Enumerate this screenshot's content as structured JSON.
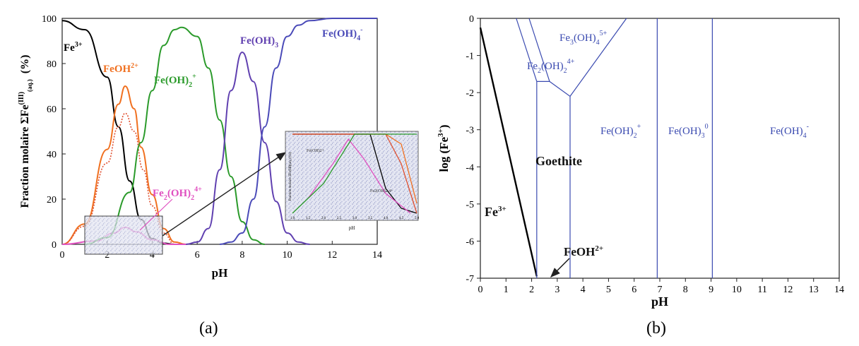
{
  "panel_labels": {
    "a": "(a)",
    "b": "(b)"
  },
  "chart_data": [
    {
      "type": "line",
      "xlabel": "pH",
      "ylabel_main": "Fraction molaire ΣFe",
      "ylabel_sup": "(III)",
      "ylabel_sub": "(aq.)",
      "ylabel_unit": "(%)",
      "xlim": [
        0,
        14
      ],
      "ylim": [
        0,
        100
      ],
      "xticks": [
        "0",
        "2",
        "4",
        "6",
        "8",
        "10",
        "12",
        "14"
      ],
      "yticks": [
        "0",
        "20",
        "40",
        "60",
        "80",
        "100"
      ],
      "series": [
        {
          "name": "Fe3+",
          "color": "#000000",
          "points": [
            [
              0,
              99
            ],
            [
              1,
              95
            ],
            [
              2,
              74
            ],
            [
              2.5,
              52
            ],
            [
              3,
              28
            ],
            [
              3.5,
              11
            ],
            [
              4,
              2.5
            ],
            [
              4.5,
              0.5
            ],
            [
              5,
              0
            ]
          ]
        },
        {
          "name": "FeOH2+",
          "color": "#f07020",
          "points": [
            [
              0,
              0
            ],
            [
              1,
              9
            ],
            [
              2,
              42
            ],
            [
              2.5,
              62
            ],
            [
              2.8,
              70
            ],
            [
              3.2,
              60
            ],
            [
              3.5,
              43
            ],
            [
              4,
              22
            ],
            [
              4.5,
              7
            ],
            [
              5,
              1
            ],
            [
              5.5,
              0
            ]
          ]
        },
        {
          "name": "FeOH2+ (dotted)",
          "color": "#e05030",
          "dashed": true,
          "points": [
            [
              0,
              0
            ],
            [
              1,
              8
            ],
            [
              2,
              36
            ],
            [
              2.5,
              52
            ],
            [
              2.8,
              58
            ],
            [
              3.2,
              50
            ],
            [
              3.6,
              33
            ],
            [
              4,
              17
            ],
            [
              4.5,
              5
            ],
            [
              5,
              0
            ]
          ]
        },
        {
          "name": "Fe2(OH)2 4+",
          "color": "#e050c0",
          "points": [
            [
              0,
              0
            ],
            [
              1.5,
              1.5
            ],
            [
              2.3,
              5
            ],
            [
              2.8,
              7.5
            ],
            [
              3.3,
              5.5
            ],
            [
              4,
              2
            ],
            [
              4.8,
              0
            ],
            [
              5.5,
              0
            ]
          ]
        },
        {
          "name": "Fe(OH)2+",
          "color": "#2a9a2a",
          "points": [
            [
              1,
              0
            ],
            [
              2,
              3
            ],
            [
              3,
              23
            ],
            [
              3.5,
              45
            ],
            [
              4,
              68
            ],
            [
              4.5,
              88
            ],
            [
              5,
              95
            ],
            [
              5.3,
              96
            ],
            [
              6,
              92
            ],
            [
              6.5,
              78
            ],
            [
              7,
              55
            ],
            [
              7.5,
              30
            ],
            [
              8,
              10
            ],
            [
              8.5,
              2
            ],
            [
              9,
              0
            ]
          ]
        },
        {
          "name": "Fe(OH)3",
          "color": "#6040b0",
          "points": [
            [
              5.5,
              0
            ],
            [
              6,
              1
            ],
            [
              6.5,
              7
            ],
            [
              7,
              33
            ],
            [
              7.5,
              68
            ],
            [
              8,
              85
            ],
            [
              8.5,
              72
            ],
            [
              9,
              45
            ],
            [
              9.5,
              19
            ],
            [
              10,
              5
            ],
            [
              10.5,
              1
            ],
            [
              11,
              0
            ]
          ]
        },
        {
          "name": "Fe(OH)4-",
          "color": "#4a4ab8",
          "points": [
            [
              7,
              0
            ],
            [
              7.5,
              1
            ],
            [
              8,
              5
            ],
            [
              8.5,
              20
            ],
            [
              9,
              52
            ],
            [
              9.5,
              78
            ],
            [
              10,
              92
            ],
            [
              10.5,
              97
            ],
            [
              11,
              99
            ],
            [
              12,
              100
            ],
            [
              14,
              100
            ]
          ]
        }
      ],
      "annotations": [
        {
          "text": "Fe",
          "sup": "3+",
          "color": "#000000"
        },
        {
          "text": "FeOH",
          "sup": "2+",
          "color": "#f07020"
        },
        {
          "text": "Fe(OH)",
          "sub": "2",
          "sup": "+",
          "color": "#2a9a2a"
        },
        {
          "text": "Fe(OH)",
          "sub": "3",
          "color": "#6040b0"
        },
        {
          "text": "Fe(OH)",
          "sub": "4",
          "sup": "-",
          "color": "#4a4ab8"
        },
        {
          "text": "Fe",
          "sub": "2",
          "mid": "(OH)",
          "sub2": "2",
          "sup": "4+",
          "color": "#e050c0"
        }
      ],
      "inset": {
        "xticks": [
          "1.0",
          "1.5",
          "2.0",
          "2.5",
          "3.0",
          "3.5",
          "4.0",
          "4.5",
          "5.0"
        ],
        "xlabel": "pH",
        "ylabel": "Fraction molaire ΣFe(III)(aq.) (%)",
        "labels": [
          "Fe2(OH)2 4+",
          "Fe(OH)2+"
        ]
      }
    },
    {
      "type": "line",
      "xlabel": "pH",
      "ylabel": "log (Fe",
      "ylabel_sup": "3+",
      "ylabel_end": ")",
      "xlim": [
        0,
        14
      ],
      "ylim": [
        -7,
        0
      ],
      "xticks": [
        "0",
        "1",
        "2",
        "3",
        "4",
        "5",
        "6",
        "7",
        "8",
        "9",
        "10",
        "11",
        "12",
        "13",
        "14"
      ],
      "yticks": [
        "0",
        "-1",
        "-2",
        "-3",
        "-4",
        "-5",
        "-6",
        "-7"
      ],
      "boundaries": [
        {
          "name": "goethite-fe3",
          "color": "#000000",
          "points": [
            [
              0,
              -0.25
            ],
            [
              2.2,
              -6.95
            ]
          ]
        },
        {
          "name": "feoh-line",
          "color": "#3a4ab0",
          "points": [
            [
              2.2,
              -7
            ],
            [
              2.2,
              -1.7
            ]
          ]
        },
        {
          "name": "fe2oh2-lower",
          "color": "#3a4ab0",
          "points": [
            [
              2.2,
              -1.7
            ],
            [
              2.7,
              -1.7
            ],
            [
              3.5,
              -2.1
            ],
            [
              3.5,
              -7
            ]
          ]
        },
        {
          "name": "fe3oh4-line",
          "color": "#3a4ab0",
          "points": [
            [
              3.5,
              -2.1
            ],
            [
              5.7,
              0
            ]
          ]
        },
        {
          "name": "left-wedge-a",
          "color": "#3a4ab0",
          "points": [
            [
              1.4,
              0
            ],
            [
              2.2,
              -1.7
            ]
          ]
        },
        {
          "name": "left-wedge-b",
          "color": "#3a4ab0",
          "points": [
            [
              1.9,
              0
            ],
            [
              2.7,
              -1.7
            ]
          ]
        },
        {
          "name": "feoh3-left",
          "color": "#3a4ab0",
          "points": [
            [
              6.9,
              0
            ],
            [
              6.9,
              -7
            ]
          ]
        },
        {
          "name": "feoh3-right",
          "color": "#3a4ab0",
          "points": [
            [
              9.05,
              0
            ],
            [
              9.05,
              -7
            ]
          ]
        }
      ],
      "region_labels": [
        {
          "text": "Fe",
          "sub": "3",
          "mid": "(OH)",
          "sub2": "4",
          "sup": "5+",
          "color": "#3a4ab0"
        },
        {
          "text": "Fe",
          "sub": "2",
          "mid": "(OH)",
          "sub2": "2",
          "sup": "4+",
          "color": "#3a4ab0"
        },
        {
          "text": "Fe(OH)",
          "sub": "2",
          "sup": "+",
          "color": "#3a4ab0"
        },
        {
          "text": "Fe(OH)",
          "sub": "3",
          "sup": "0",
          "color": "#3a4ab0"
        },
        {
          "text": "Fe(OH)",
          "sub": "4",
          "sup": "-",
          "color": "#3a4ab0"
        },
        {
          "text": "Goethite",
          "color": "#111111"
        },
        {
          "text": "Fe",
          "sup": "3+",
          "color": "#111111"
        },
        {
          "text": "FeOH",
          "sup": "2+",
          "color": "#111111"
        }
      ]
    }
  ]
}
